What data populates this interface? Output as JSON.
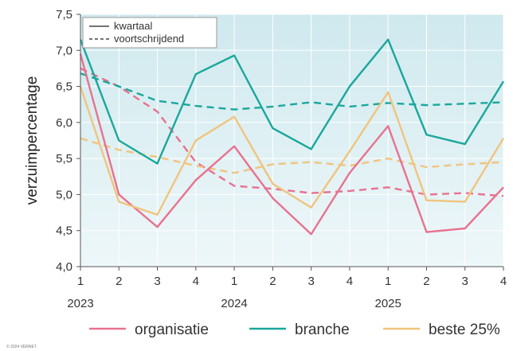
{
  "chart_data": {
    "type": "line",
    "ylabel": "verzuimpercentage",
    "xlabel": "",
    "title": "",
    "ylim": [
      4.0,
      7.5
    ],
    "y_ticks": [
      "4,0",
      "4,5",
      "5,0",
      "5,5",
      "6,0",
      "6,5",
      "7,0",
      "7,5"
    ],
    "y_tick_values": [
      4.0,
      4.5,
      5.0,
      5.5,
      6.0,
      6.5,
      7.0,
      7.5
    ],
    "categories": [
      "1",
      "2",
      "3",
      "4",
      "1",
      "2",
      "3",
      "4",
      "1",
      "2",
      "3",
      "4"
    ],
    "year_labels": [
      {
        "label": "2023",
        "index": 0
      },
      {
        "label": "2024",
        "index": 4
      },
      {
        "label": "2025",
        "index": 8
      }
    ],
    "grid": true,
    "line_styles": [
      {
        "label": "kwartaal",
        "style": "solid"
      },
      {
        "label": "voortschrijdend",
        "style": "dashed"
      }
    ],
    "series": [
      {
        "name": "organisatie",
        "color": "#e8728f",
        "kwartaal": [
          6.95,
          5.0,
          4.55,
          5.2,
          5.67,
          4.95,
          4.45,
          5.3,
          5.95,
          4.48,
          4.53,
          5.1
        ],
        "voortschrijdend": [
          6.75,
          6.5,
          6.15,
          5.45,
          5.12,
          5.08,
          5.02,
          5.05,
          5.1,
          5.0,
          5.02,
          4.98
        ]
      },
      {
        "name": "branche",
        "color": "#1aa79c",
        "kwartaal": [
          7.15,
          5.75,
          5.43,
          6.67,
          6.93,
          5.92,
          5.63,
          6.5,
          7.15,
          5.83,
          5.7,
          6.57
        ],
        "voortschrijdend": [
          6.68,
          6.5,
          6.3,
          6.23,
          6.18,
          6.22,
          6.28,
          6.22,
          6.27,
          6.24,
          6.26,
          6.28
        ]
      },
      {
        "name": "beste 25%",
        "color": "#f0c47e",
        "kwartaal": [
          6.5,
          4.9,
          4.72,
          5.75,
          6.08,
          5.15,
          4.82,
          5.6,
          6.42,
          4.92,
          4.9,
          5.78
        ],
        "voortschrijdend": [
          5.78,
          5.62,
          5.52,
          5.4,
          5.3,
          5.42,
          5.45,
          5.4,
          5.5,
          5.38,
          5.42,
          5.45
        ]
      }
    ]
  },
  "copyright": "© 2024 VERNET"
}
